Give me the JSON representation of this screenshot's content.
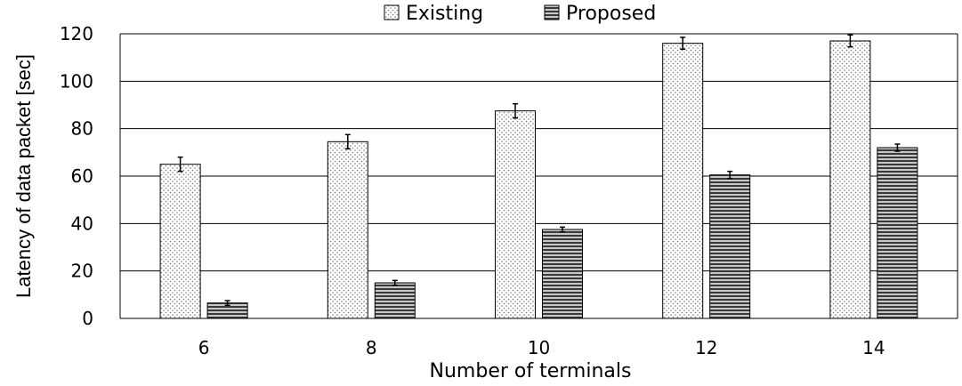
{
  "chart_data": {
    "type": "bar",
    "title": "",
    "xlabel": "Number of terminals",
    "ylabel": "Latency of data packet [sec]",
    "categories": [
      "6",
      "8",
      "10",
      "12",
      "14"
    ],
    "ylim": [
      0,
      120
    ],
    "yticks": [
      0,
      20,
      40,
      60,
      80,
      100,
      120
    ],
    "grid": true,
    "legend_position": "top-center",
    "series": [
      {
        "name": "Existing",
        "pattern": "dotted",
        "values": [
          65,
          74.5,
          87.5,
          116,
          117
        ],
        "errors": [
          3,
          3,
          3,
          2.5,
          2.5
        ]
      },
      {
        "name": "Proposed",
        "pattern": "horizontal-stripes",
        "values": [
          6.5,
          15,
          37.5,
          60.5,
          72
        ],
        "errors": [
          1,
          1,
          1,
          1.5,
          1.5
        ]
      }
    ]
  }
}
